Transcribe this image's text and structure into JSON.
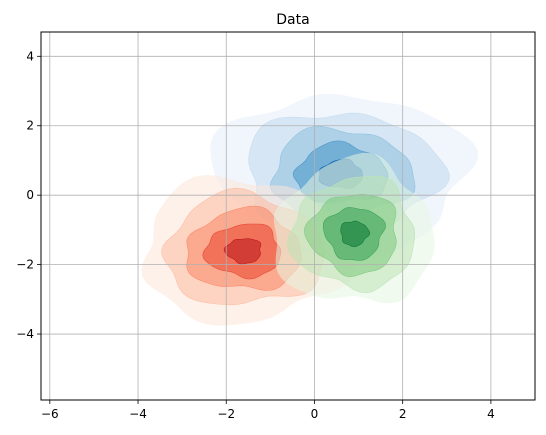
{
  "chart_data": {
    "type": "contour",
    "title": "Data",
    "xlim": [
      -6.2,
      5.0
    ],
    "ylim": [
      -5.9,
      4.7
    ],
    "xticks": [
      -6,
      -4,
      -2,
      0,
      2,
      4
    ],
    "yticks": [
      -4,
      -2,
      0,
      2,
      4
    ],
    "x_tick_labels": [
      "−6",
      "−4",
      "−2",
      "0",
      "2",
      "4"
    ],
    "y_tick_labels": [
      "−4",
      "−2",
      "0",
      "2",
      "4"
    ],
    "grid": true,
    "series": [
      {
        "colormap": "Blues",
        "center": [
          0.6,
          0.6
        ],
        "spread": [
          1.1,
          0.9
        ],
        "level_colors": [
          "#e4eef9",
          "#c2d9ee",
          "#8cc0dd",
          "#4694c7",
          "#1765ab"
        ]
      },
      {
        "colormap": "Reds",
        "center": [
          -1.6,
          -1.6
        ],
        "spread": [
          0.9,
          0.8
        ],
        "level_colors": [
          "#fee5d8",
          "#fcbba1",
          "#fc8666",
          "#e7422e",
          "#b81419"
        ]
      },
      {
        "colormap": "Greens",
        "center": [
          0.9,
          -1.1
        ],
        "spread": [
          0.7,
          0.8
        ],
        "level_colors": [
          "#e6f5e1",
          "#bce4b5",
          "#7dc87e",
          "#37a055",
          "#0b7734"
        ]
      }
    ]
  }
}
